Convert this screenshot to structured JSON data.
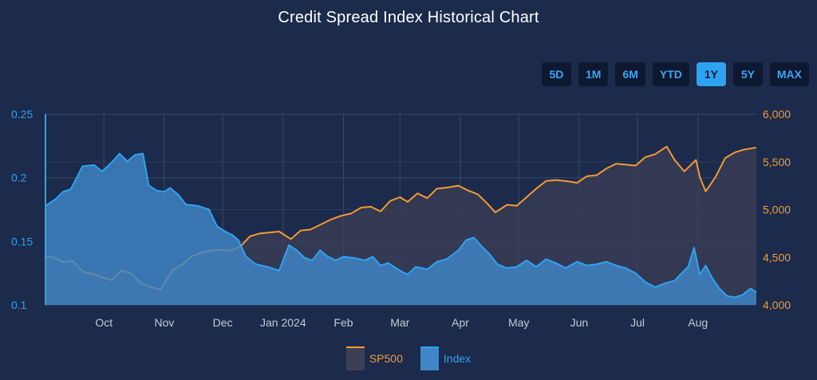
{
  "title": "Credit Spread Index Historical Chart",
  "range_buttons": [
    {
      "label": "5D",
      "active": false
    },
    {
      "label": "1M",
      "active": false
    },
    {
      "label": "6M",
      "active": false
    },
    {
      "label": "YTD",
      "active": false
    },
    {
      "label": "1Y",
      "active": true
    },
    {
      "label": "5Y",
      "active": false
    },
    {
      "label": "MAX",
      "active": false
    }
  ],
  "colors": {
    "sp500": "#f39b2f",
    "index": "#2ea3f2",
    "background": "#1c2a4b",
    "grid": "#3b4869"
  },
  "chart_data": {
    "type": "area",
    "x_tick_labels": [
      "Oct",
      "Nov",
      "Dec",
      "Jan 2024",
      "Feb",
      "Mar",
      "Apr",
      "May",
      "Jun",
      "Jul",
      "Aug"
    ],
    "x_ticks": [
      "2023-10-01",
      "2023-11-01",
      "2023-12-01",
      "2024-01-01",
      "2024-02-01",
      "2024-03-01",
      "2024-04-01",
      "2024-05-01",
      "2024-06-01",
      "2024-07-01",
      "2024-08-01"
    ],
    "xlim": [
      "2023-09-01",
      "2024-08-31"
    ],
    "y_left": {
      "ticks": [
        0.1,
        0.15,
        0.2,
        0.25
      ],
      "tick_labels": [
        "0.1",
        "0.15",
        "0.2",
        "0.25"
      ],
      "range": [
        0.1,
        0.25
      ]
    },
    "y_right": {
      "ticks": [
        4000,
        4500,
        5000,
        5500,
        6000
      ],
      "tick_labels": [
        "4,000",
        "4,500",
        "5,000",
        "5,500",
        "6,000"
      ],
      "range": [
        4000,
        6000
      ]
    },
    "grid": true,
    "legend_position": "bottom-center",
    "series": [
      {
        "name": "SP500",
        "axis": "right",
        "points": [
          [
            "2023-09-01",
            4510
          ],
          [
            "2023-09-05",
            4500
          ],
          [
            "2023-09-10",
            4450
          ],
          [
            "2023-09-15",
            4460
          ],
          [
            "2023-09-20",
            4350
          ],
          [
            "2023-09-25",
            4330
          ],
          [
            "2023-09-30",
            4290
          ],
          [
            "2023-10-05",
            4260
          ],
          [
            "2023-10-10",
            4360
          ],
          [
            "2023-10-15",
            4330
          ],
          [
            "2023-10-20",
            4230
          ],
          [
            "2023-10-25",
            4190
          ],
          [
            "2023-10-30",
            4160
          ],
          [
            "2023-11-05",
            4360
          ],
          [
            "2023-11-10",
            4420
          ],
          [
            "2023-11-15",
            4510
          ],
          [
            "2023-11-20",
            4550
          ],
          [
            "2023-11-25",
            4570
          ],
          [
            "2023-11-30",
            4580
          ],
          [
            "2023-12-05",
            4570
          ],
          [
            "2023-12-10",
            4610
          ],
          [
            "2023-12-15",
            4720
          ],
          [
            "2023-12-20",
            4750
          ],
          [
            "2023-12-25",
            4760
          ],
          [
            "2023-12-30",
            4770
          ],
          [
            "2024-01-05",
            4690
          ],
          [
            "2024-01-10",
            4780
          ],
          [
            "2024-01-15",
            4790
          ],
          [
            "2024-01-20",
            4840
          ],
          [
            "2024-01-25",
            4890
          ],
          [
            "2024-01-30",
            4930
          ],
          [
            "2024-02-05",
            4960
          ],
          [
            "2024-02-10",
            5020
          ],
          [
            "2024-02-15",
            5030
          ],
          [
            "2024-02-20",
            4980
          ],
          [
            "2024-02-25",
            5090
          ],
          [
            "2024-03-01",
            5130
          ],
          [
            "2024-03-05",
            5080
          ],
          [
            "2024-03-10",
            5170
          ],
          [
            "2024-03-15",
            5120
          ],
          [
            "2024-03-20",
            5220
          ],
          [
            "2024-03-25",
            5230
          ],
          [
            "2024-03-31",
            5250
          ],
          [
            "2024-04-05",
            5200
          ],
          [
            "2024-04-10",
            5160
          ],
          [
            "2024-04-15",
            5060
          ],
          [
            "2024-04-19",
            4970
          ],
          [
            "2024-04-25",
            5050
          ],
          [
            "2024-04-30",
            5040
          ],
          [
            "2024-05-05",
            5130
          ],
          [
            "2024-05-10",
            5220
          ],
          [
            "2024-05-15",
            5300
          ],
          [
            "2024-05-20",
            5310
          ],
          [
            "2024-05-25",
            5300
          ],
          [
            "2024-05-31",
            5280
          ],
          [
            "2024-06-05",
            5350
          ],
          [
            "2024-06-10",
            5360
          ],
          [
            "2024-06-15",
            5430
          ],
          [
            "2024-06-20",
            5480
          ],
          [
            "2024-06-25",
            5470
          ],
          [
            "2024-06-30",
            5460
          ],
          [
            "2024-07-05",
            5550
          ],
          [
            "2024-07-10",
            5580
          ],
          [
            "2024-07-16",
            5660
          ],
          [
            "2024-07-20",
            5520
          ],
          [
            "2024-07-25",
            5400
          ],
          [
            "2024-07-31",
            5520
          ],
          [
            "2024-08-02",
            5340
          ],
          [
            "2024-08-05",
            5190
          ],
          [
            "2024-08-10",
            5340
          ],
          [
            "2024-08-15",
            5540
          ],
          [
            "2024-08-20",
            5600
          ],
          [
            "2024-08-25",
            5630
          ],
          [
            "2024-08-31",
            5650
          ]
        ]
      },
      {
        "name": "Index",
        "axis": "left",
        "points": [
          [
            "2023-09-01",
            0.178
          ],
          [
            "2023-09-03",
            0.18
          ],
          [
            "2023-09-06",
            0.183
          ],
          [
            "2023-09-10",
            0.189
          ],
          [
            "2023-09-14",
            0.191
          ],
          [
            "2023-09-17",
            0.2
          ],
          [
            "2023-09-20",
            0.209
          ],
          [
            "2023-09-26",
            0.21
          ],
          [
            "2023-09-30",
            0.205
          ],
          [
            "2023-10-05",
            0.212
          ],
          [
            "2023-10-09",
            0.219
          ],
          [
            "2023-10-13",
            0.213
          ],
          [
            "2023-10-17",
            0.218
          ],
          [
            "2023-10-21",
            0.219
          ],
          [
            "2023-10-24",
            0.194
          ],
          [
            "2023-10-28",
            0.19
          ],
          [
            "2023-11-01",
            0.189
          ],
          [
            "2023-11-04",
            0.192
          ],
          [
            "2023-11-08",
            0.187
          ],
          [
            "2023-11-12",
            0.179
          ],
          [
            "2023-11-18",
            0.178
          ],
          [
            "2023-11-24",
            0.175
          ],
          [
            "2023-11-28",
            0.162
          ],
          [
            "2023-12-02",
            0.158
          ],
          [
            "2023-12-06",
            0.155
          ],
          [
            "2023-12-09",
            0.151
          ],
          [
            "2023-12-13",
            0.138
          ],
          [
            "2023-12-18",
            0.132
          ],
          [
            "2023-12-24",
            0.13
          ],
          [
            "2023-12-30",
            0.127
          ],
          [
            "2024-01-04",
            0.147
          ],
          [
            "2024-01-08",
            0.143
          ],
          [
            "2024-01-12",
            0.137
          ],
          [
            "2024-01-16",
            0.135
          ],
          [
            "2024-01-20",
            0.143
          ],
          [
            "2024-01-24",
            0.138
          ],
          [
            "2024-01-28",
            0.135
          ],
          [
            "2024-02-01",
            0.138
          ],
          [
            "2024-02-06",
            0.137
          ],
          [
            "2024-02-12",
            0.135
          ],
          [
            "2024-02-16",
            0.138
          ],
          [
            "2024-02-20",
            0.131
          ],
          [
            "2024-02-24",
            0.133
          ],
          [
            "2024-03-01",
            0.127
          ],
          [
            "2024-03-05",
            0.124
          ],
          [
            "2024-03-09",
            0.13
          ],
          [
            "2024-03-15",
            0.128
          ],
          [
            "2024-03-20",
            0.134
          ],
          [
            "2024-03-25",
            0.136
          ],
          [
            "2024-03-31",
            0.143
          ],
          [
            "2024-04-04",
            0.151
          ],
          [
            "2024-04-08",
            0.153
          ],
          [
            "2024-04-12",
            0.146
          ],
          [
            "2024-04-16",
            0.14
          ],
          [
            "2024-04-20",
            0.132
          ],
          [
            "2024-04-25",
            0.129
          ],
          [
            "2024-04-30",
            0.13
          ],
          [
            "2024-05-05",
            0.135
          ],
          [
            "2024-05-10",
            0.13
          ],
          [
            "2024-05-15",
            0.136
          ],
          [
            "2024-05-20",
            0.133
          ],
          [
            "2024-05-25",
            0.129
          ],
          [
            "2024-05-31",
            0.134
          ],
          [
            "2024-06-05",
            0.131
          ],
          [
            "2024-06-10",
            0.132
          ],
          [
            "2024-06-15",
            0.134
          ],
          [
            "2024-06-20",
            0.131
          ],
          [
            "2024-06-25",
            0.129
          ],
          [
            "2024-06-30",
            0.125
          ],
          [
            "2024-07-05",
            0.118
          ],
          [
            "2024-07-10",
            0.114
          ],
          [
            "2024-07-15",
            0.117
          ],
          [
            "2024-07-20",
            0.119
          ],
          [
            "2024-07-23",
            0.124
          ],
          [
            "2024-07-27",
            0.13
          ],
          [
            "2024-07-30",
            0.145
          ],
          [
            "2024-08-02",
            0.124
          ],
          [
            "2024-08-05",
            0.131
          ],
          [
            "2024-08-08",
            0.122
          ],
          [
            "2024-08-12",
            0.113
          ],
          [
            "2024-08-16",
            0.107
          ],
          [
            "2024-08-20",
            0.106
          ],
          [
            "2024-08-24",
            0.108
          ],
          [
            "2024-08-28",
            0.113
          ],
          [
            "2024-08-31",
            0.11
          ]
        ]
      }
    ]
  }
}
